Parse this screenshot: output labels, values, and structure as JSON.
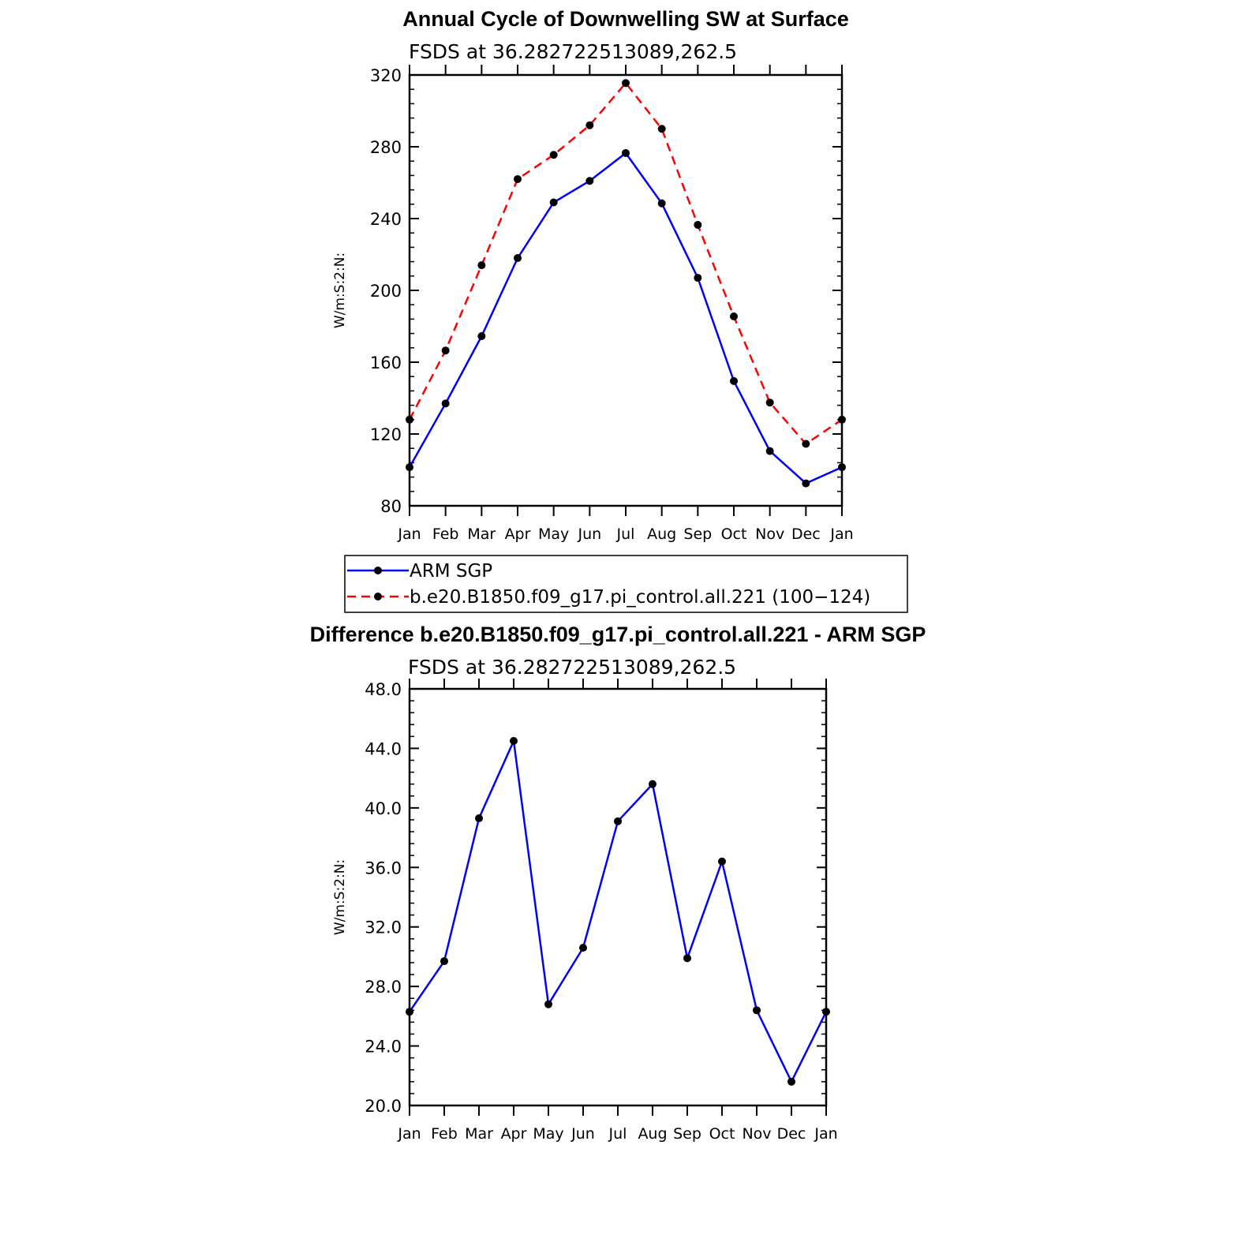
{
  "chart_data": [
    {
      "type": "line",
      "title": "Annual Cycle of Downwelling SW at Surface",
      "subtitle": "FSDS at 36.282722513089,262.5",
      "ylabel": "W/m:S:2:N:",
      "xlabel": "",
      "categories": [
        "Jan",
        "Feb",
        "Mar",
        "Apr",
        "May",
        "Jun",
        "Jul",
        "Aug",
        "Sep",
        "Oct",
        "Nov",
        "Dec",
        "Jan"
      ],
      "ylim": [
        80,
        320
      ],
      "yticks": [
        "80",
        "120",
        "160",
        "200",
        "240",
        "280",
        "320"
      ],
      "series": [
        {
          "name": "ARM SGP",
          "color": "#0000ff",
          "dash": "solid",
          "values": [
            101.5,
            137,
            174.5,
            218,
            249,
            261,
            276.5,
            248.5,
            207,
            149.5,
            110.5,
            92.5,
            101.5
          ]
        },
        {
          "name": "b.e20.B1850.f09_g17.pi_control.all.221 (100−124)",
          "color": "#ff0000",
          "dash": "dashed",
          "values": [
            128,
            166.5,
            214,
            262,
            275.5,
            292,
            315.5,
            290,
            236.5,
            185.5,
            137.5,
            114.5,
            128
          ]
        }
      ],
      "legend": "below"
    },
    {
      "type": "line",
      "title": "Difference b.e20.B1850.f09_g17.pi_control.all.221 - ARM SGP",
      "subtitle": "FSDS at 36.282722513089,262.5",
      "ylabel": "W/m:S:2:N:",
      "xlabel": "",
      "categories": [
        "Jan",
        "Feb",
        "Mar",
        "Apr",
        "May",
        "Jun",
        "Jul",
        "Aug",
        "Sep",
        "Oct",
        "Nov",
        "Dec",
        "Jan"
      ],
      "ylim": [
        20,
        48
      ],
      "yticks": [
        "20.0",
        "24.0",
        "28.0",
        "32.0",
        "36.0",
        "40.0",
        "44.0",
        "48.0"
      ],
      "series": [
        {
          "color": "#0000ff",
          "dash": "solid",
          "values": [
            26.3,
            29.7,
            39.3,
            44.5,
            26.8,
            30.6,
            39.1,
            41.6,
            29.9,
            36.4,
            26.4,
            21.6,
            26.3
          ]
        }
      ]
    }
  ]
}
